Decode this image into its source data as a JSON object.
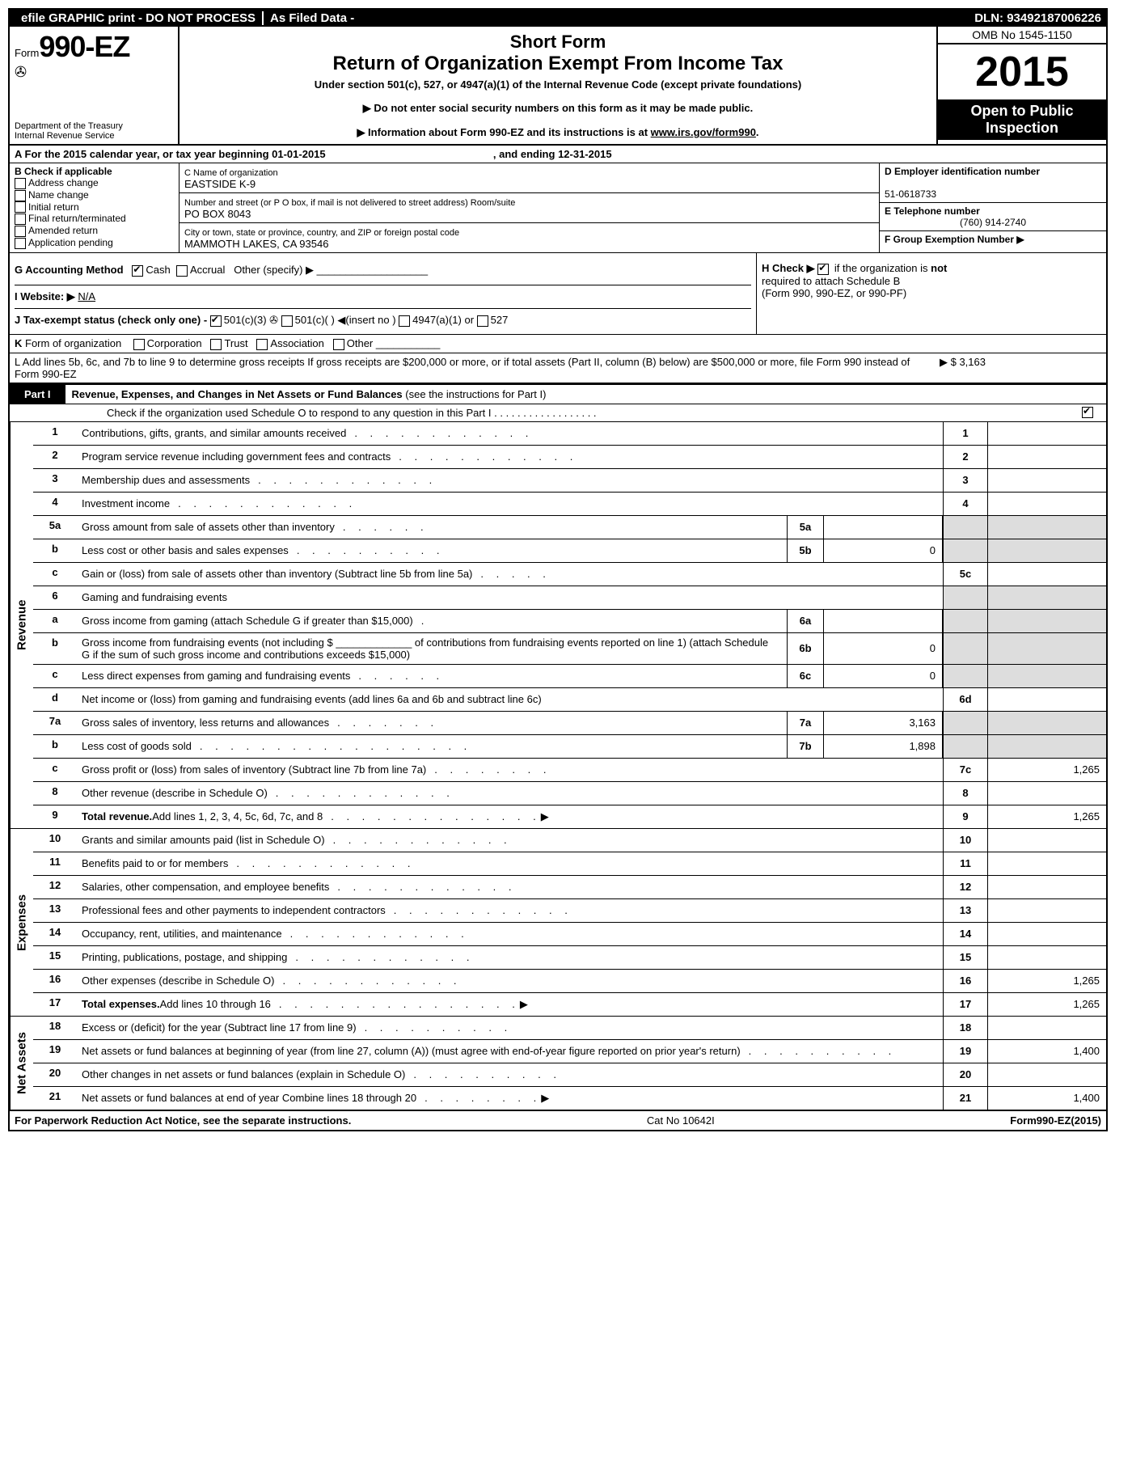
{
  "topbar": {
    "efile": "efile GRAPHIC print - DO NOT PROCESS",
    "asfiled": "As Filed Data -",
    "dln_label": "DLN:",
    "dln": "93492187006226"
  },
  "header": {
    "form_prefix": "Form",
    "form_no": "990-EZ",
    "treasury1": "Department of the Treasury",
    "treasury2": "Internal Revenue Service",
    "short": "Short Form",
    "title": "Return of Organization Exempt From Income Tax",
    "sub": "Under section 501(c), 527, or 4947(a)(1) of the Internal Revenue Code (except private foundations)",
    "note1": "▶ Do not enter social security numbers on this form as it may be made public.",
    "note2_a": "▶ Information about Form 990-EZ and its instructions is at ",
    "note2_link": "www.irs.gov/form990",
    "omb": "OMB No 1545-1150",
    "year": "2015",
    "inspect1": "Open to Public",
    "inspect2": "Inspection"
  },
  "rowA": {
    "text_a": "A  For the 2015 calendar year, or tax year beginning ",
    "begin": "01-01-2015",
    "mid": " , and ending ",
    "end": "12-31-2015"
  },
  "boxB": {
    "title": "B  Check if applicable",
    "items": [
      "Address change",
      "Name change",
      "Initial return",
      "Final return/terminated",
      "Amended return",
      "Application pending"
    ]
  },
  "boxC": {
    "name_lbl": "C Name of organization",
    "name": "EASTSIDE K-9",
    "street_lbl": "Number and street (or P O box, if mail is not delivered to street address) Room/suite",
    "street": "PO BOX 8043",
    "city_lbl": "City or town, state or province, country, and ZIP or foreign postal code",
    "city": "MAMMOTH LAKES, CA  93546"
  },
  "boxD": {
    "d_lbl": "D Employer identification number",
    "d_val": "51-0618733",
    "e_lbl": "E Telephone number",
    "e_val": "(760) 914-2740",
    "f_lbl": "F Group Exemption Number  ▶"
  },
  "rowG": {
    "g": "G Accounting Method",
    "cash": "Cash",
    "accrual": "Accrual",
    "other": "Other (specify) ▶",
    "h": "H  Check ▶",
    "h2": "if the organization is",
    "not": "not",
    "h3": "required to attach Schedule B",
    "h4": "(Form 990, 990-EZ, or 990-PF)"
  },
  "rowI": {
    "lbl": "I Website: ▶",
    "val": "N/A"
  },
  "rowJ": "J Tax-exempt status (check only one) -",
  "rowJ_a": "501(c)(3)",
  "rowJ_b": "501(c)(  ) ◀(insert no )",
  "rowJ_c": "4947(a)(1) or",
  "rowJ_d": "527",
  "rowK": "K Form of organization    ☐Corporation  ☐Trust  ☐Association  ☐Other",
  "rowL": {
    "text": "L Add lines 5b, 6c, and 7b to line 9 to determine gross receipts  If gross receipts are $200,000 or more, or if total assets (Part II, column (B) below) are $500,000 or more, file Form 990 instead of Form 990-EZ",
    "val": "▶ $ 3,163"
  },
  "part1": {
    "tag": "Part I",
    "title": "Revenue, Expenses, and Changes in Net Assets or Fund Balances",
    "sub": "(see the instructions for Part I)",
    "check": "Check if the organization used Schedule O to respond to any question in this Part I  .  .  .  .  .  .  .  .  .  .  .  .  .  .  .  .  .  ."
  },
  "sections": {
    "revenue": "Revenue",
    "expenses": "Expenses",
    "netassets": "Net Assets"
  },
  "lines": {
    "l1": {
      "n": "1",
      "d": "Contributions, gifts, grants, and similar amounts received",
      "rn": "1",
      "rv": ""
    },
    "l2": {
      "n": "2",
      "d": "Program service revenue including government fees and contracts",
      "rn": "2",
      "rv": ""
    },
    "l3": {
      "n": "3",
      "d": "Membership dues and assessments",
      "rn": "3",
      "rv": ""
    },
    "l4": {
      "n": "4",
      "d": "Investment income",
      "rn": "4",
      "rv": ""
    },
    "l5a": {
      "n": "5a",
      "d": "Gross amount from sale of assets other than inventory",
      "mn": "5a",
      "mv": ""
    },
    "l5b": {
      "n": "b",
      "d": "Less  cost or other basis and sales expenses",
      "mn": "5b",
      "mv": "0"
    },
    "l5c": {
      "n": "c",
      "d": "Gain or (loss) from sale of assets other than inventory (Subtract line 5b from line 5a)",
      "rn": "5c",
      "rv": ""
    },
    "l6": {
      "n": "6",
      "d": "Gaming and fundraising events"
    },
    "l6a": {
      "n": "a",
      "d": "Gross income from gaming (attach Schedule G if greater than $15,000)",
      "mn": "6a",
      "mv": ""
    },
    "l6b": {
      "n": "b",
      "d": "Gross income from fundraising events (not including $ _____________ of contributions from fundraising events reported on line 1) (attach Schedule G if the sum of such gross income and contributions exceeds $15,000)",
      "mn": "6b",
      "mv": "0"
    },
    "l6c": {
      "n": "c",
      "d": "Less  direct expenses from gaming and fundraising events",
      "mn": "6c",
      "mv": "0"
    },
    "l6d": {
      "n": "d",
      "d": "Net income or (loss) from gaming and fundraising events (add lines 6a and 6b and subtract line 6c)",
      "rn": "6d",
      "rv": ""
    },
    "l7a": {
      "n": "7a",
      "d": "Gross sales of inventory, less returns and allowances",
      "mn": "7a",
      "mv": "3,163"
    },
    "l7b": {
      "n": "b",
      "d": "Less  cost of goods sold",
      "mn": "7b",
      "mv": "1,898"
    },
    "l7c": {
      "n": "c",
      "d": "Gross profit or (loss) from sales of inventory (Subtract line 7b from line 7a)",
      "rn": "7c",
      "rv": "1,265"
    },
    "l8": {
      "n": "8",
      "d": "Other revenue (describe in Schedule O)",
      "rn": "8",
      "rv": ""
    },
    "l9": {
      "n": "9",
      "d": "Total revenue. Add lines 1, 2, 3, 4, 5c, 6d, 7c, and 8",
      "rn": "9",
      "rv": "1,265",
      "arrow": true,
      "bold": true
    },
    "l10": {
      "n": "10",
      "d": "Grants and similar amounts paid (list in Schedule O)",
      "rn": "10",
      "rv": ""
    },
    "l11": {
      "n": "11",
      "d": "Benefits paid to or for members",
      "rn": "11",
      "rv": ""
    },
    "l12": {
      "n": "12",
      "d": "Salaries, other compensation, and employee benefits",
      "rn": "12",
      "rv": ""
    },
    "l13": {
      "n": "13",
      "d": "Professional fees and other payments to independent contractors",
      "rn": "13",
      "rv": ""
    },
    "l14": {
      "n": "14",
      "d": "Occupancy, rent, utilities, and maintenance",
      "rn": "14",
      "rv": ""
    },
    "l15": {
      "n": "15",
      "d": "Printing, publications, postage, and shipping",
      "rn": "15",
      "rv": ""
    },
    "l16": {
      "n": "16",
      "d": "Other expenses (describe in Schedule O)",
      "rn": "16",
      "rv": "1,265"
    },
    "l17": {
      "n": "17",
      "d": "Total expenses. Add lines 10 through 16",
      "rn": "17",
      "rv": "1,265",
      "arrow": true,
      "bold": true
    },
    "l18": {
      "n": "18",
      "d": "Excess or (deficit) for the year (Subtract line 17 from line 9)",
      "rn": "18",
      "rv": ""
    },
    "l19": {
      "n": "19",
      "d": "Net assets or fund balances at beginning of year (from line 27, column (A)) (must agree with end-of-year figure reported on prior year's return)",
      "rn": "19",
      "rv": "1,400"
    },
    "l20": {
      "n": "20",
      "d": "Other changes in net assets or fund balances (explain in Schedule O)",
      "rn": "20",
      "rv": ""
    },
    "l21": {
      "n": "21",
      "d": "Net assets or fund balances at end of year  Combine lines 18 through 20",
      "rn": "21",
      "rv": "1,400",
      "arrow": true
    }
  },
  "footer": {
    "left": "For Paperwork Reduction Act Notice, see the separate instructions.",
    "mid": "Cat No 10642I",
    "right": "Form 990-EZ (2015)"
  },
  "dotfill": ".  .  .  .  .  .  .  .  .  .  .  .  .  .  .  ."
}
